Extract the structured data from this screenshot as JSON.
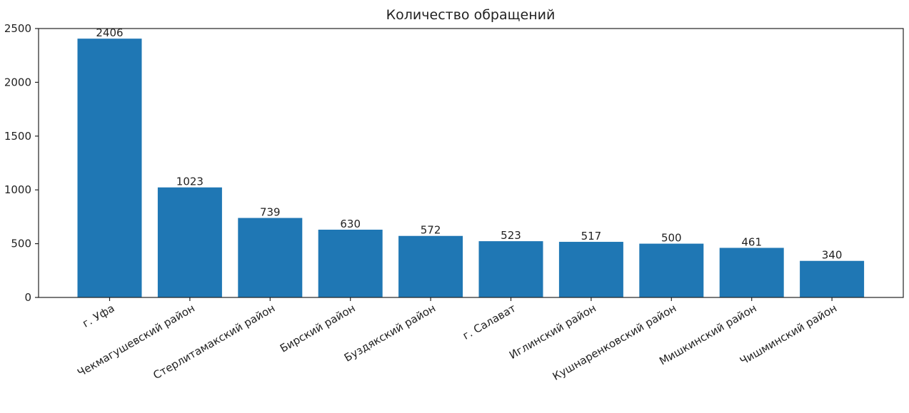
{
  "colors": {
    "bar": "#1f77b4",
    "axis": "#222222",
    "background": "#ffffff"
  },
  "chart_data": {
    "type": "bar",
    "title": "Количество обращений",
    "xlabel": "",
    "ylabel": "",
    "ylim": [
      0,
      2500
    ],
    "yticks": [
      0,
      500,
      1000,
      1500,
      2000,
      2500
    ],
    "grid": false,
    "categories": [
      "г. Уфа",
      "Чекмагушевский район",
      "Стерлитамакский район",
      "Бирский район",
      "Буздякский район",
      "г. Салават",
      "Иглинский район",
      "Кушнаренковский район",
      "Мишкинский район",
      "Чишминский район"
    ],
    "values": [
      2406,
      1023,
      739,
      630,
      572,
      523,
      517,
      500,
      461,
      340
    ],
    "data_labels": [
      "2406",
      "1023",
      "739",
      "630",
      "572",
      "523",
      "517",
      "500",
      "461",
      "340"
    ]
  }
}
